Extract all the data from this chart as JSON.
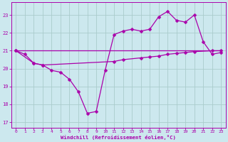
{
  "background_color": "#cce8ee",
  "grid_color": "#aacccc",
  "line_color": "#aa00aa",
  "xlabel": "Windchill (Refroidissement éolien,°C)",
  "xlabel_color": "#aa00aa",
  "tick_color": "#aa00aa",
  "xlim": [
    -0.5,
    23.5
  ],
  "ylim": [
    16.7,
    23.7
  ],
  "yticks": [
    17,
    18,
    19,
    20,
    21,
    22,
    23
  ],
  "xticks": [
    0,
    1,
    2,
    3,
    4,
    5,
    6,
    7,
    8,
    9,
    10,
    11,
    12,
    13,
    14,
    15,
    16,
    17,
    18,
    19,
    20,
    21,
    22,
    23
  ],
  "line1_x": [
    0,
    1,
    2,
    3,
    4,
    5,
    6,
    7,
    8,
    9,
    10,
    11,
    12,
    13,
    14,
    15,
    16,
    17,
    18,
    19,
    20,
    21,
    22,
    23
  ],
  "line1_y": [
    21.0,
    20.8,
    20.3,
    20.2,
    19.9,
    19.8,
    19.4,
    18.7,
    17.5,
    17.6,
    19.9,
    21.9,
    22.1,
    22.2,
    22.1,
    22.2,
    22.9,
    23.2,
    22.7,
    22.6,
    23.0,
    21.5,
    20.8,
    20.9
  ],
  "line2_x": [
    0,
    2,
    3,
    11,
    12,
    14,
    15,
    16,
    17,
    18,
    19,
    20,
    22,
    23
  ],
  "line2_y": [
    21.0,
    20.3,
    20.2,
    20.4,
    20.5,
    20.6,
    20.65,
    20.7,
    20.8,
    20.85,
    20.9,
    20.95,
    21.0,
    21.0
  ],
  "markersize": 2.5,
  "linewidth": 0.9
}
